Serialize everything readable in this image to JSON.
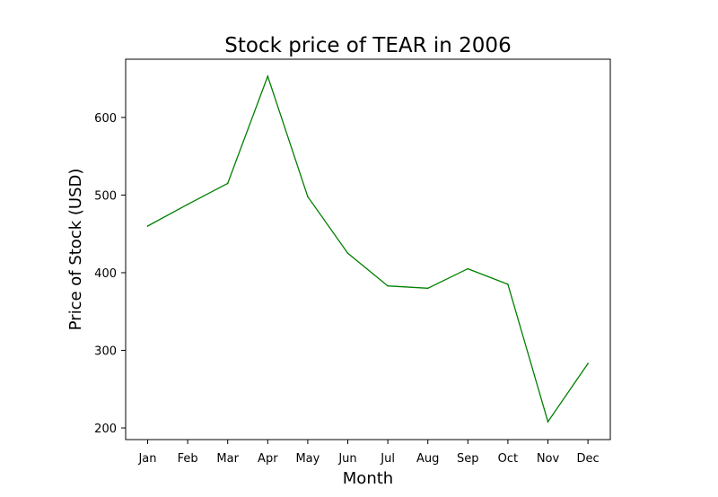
{
  "chart_data": {
    "type": "line",
    "title": "Stock price of TEAR in 2006",
    "xlabel": "Month",
    "ylabel": "Price of Stock (USD)",
    "categories": [
      "Jan",
      "Feb",
      "Mar",
      "Apr",
      "May",
      "Jun",
      "Jul",
      "Aug",
      "Sep",
      "Oct",
      "Nov",
      "Dec"
    ],
    "series": [
      {
        "values": [
          460,
          488,
          515,
          653,
          498,
          425,
          383,
          380,
          405,
          385,
          208,
          283
        ],
        "color": "#008000"
      }
    ],
    "ylim": [
      185,
      675
    ],
    "yticks": [
      200,
      300,
      400,
      500,
      600
    ],
    "grid": false,
    "legend": "none"
  }
}
